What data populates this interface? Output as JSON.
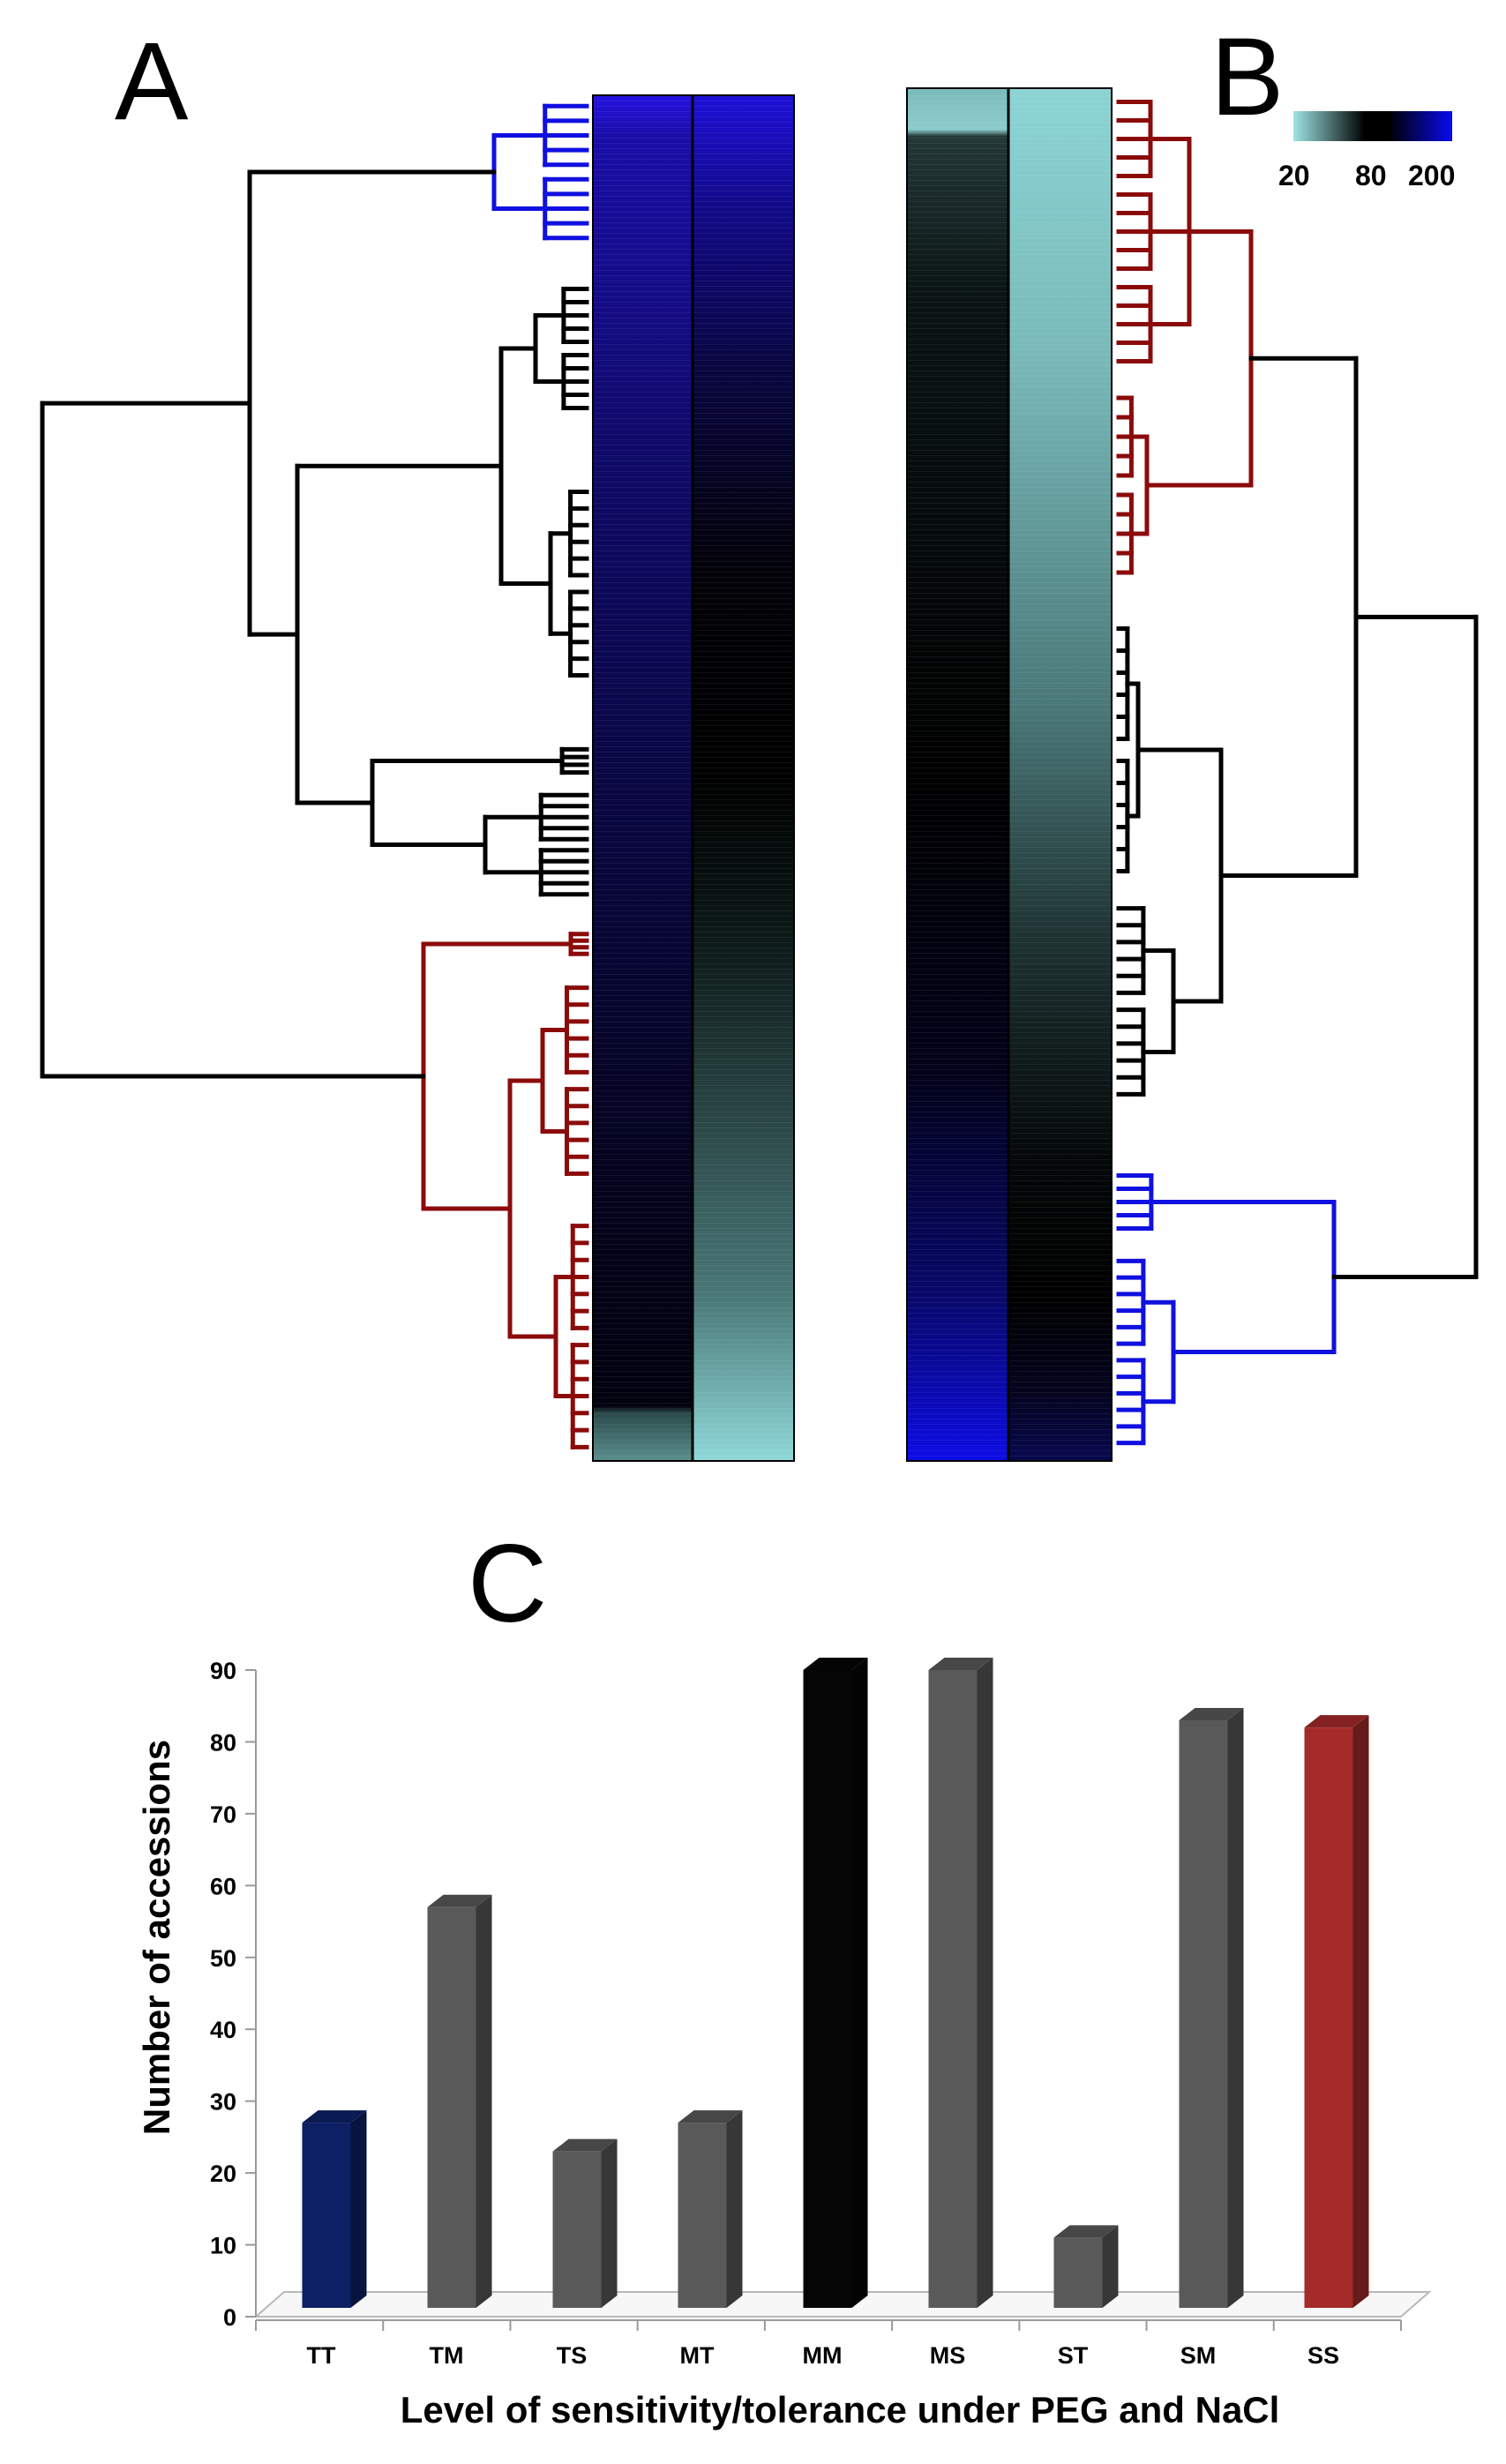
{
  "panels": {
    "a": "A",
    "b": "B",
    "c": "C"
  },
  "colors": {
    "cluster_blue": "#1010e0",
    "cluster_black": "#000000",
    "cluster_red": "#8b0b0b",
    "heat_low": "#8fdcdc",
    "heat_mid": "#000000",
    "heat_high": "#0a0ae6",
    "bar_grey": "#595959",
    "bar_navy": "#0d2066",
    "bar_black": "#050505",
    "bar_red": "#a52a2a"
  },
  "heatmap_legend": {
    "labels": [
      "20",
      "80",
      "200"
    ]
  },
  "chart_data": [
    {
      "type": "heatmap",
      "panel": "A",
      "columns": 2,
      "value_range": [
        20,
        200
      ],
      "color_scale": [
        "20",
        "80",
        "200"
      ],
      "dendrogram_clusters": [
        "blue",
        "black",
        "red"
      ]
    },
    {
      "type": "heatmap",
      "panel": "B",
      "columns": 2,
      "value_range": [
        20,
        200
      ],
      "color_scale": [
        "20",
        "80",
        "200"
      ],
      "dendrogram_clusters": [
        "red",
        "black",
        "blue"
      ]
    },
    {
      "type": "bar",
      "panel": "C",
      "categories": [
        "TT",
        "TM",
        "TS",
        "MT",
        "MM",
        "MS",
        "ST",
        "SM",
        "SS"
      ],
      "values": [
        27,
        57,
        23,
        27,
        90,
        90,
        11,
        83,
        82
      ],
      "bar_colors": [
        "#0d2066",
        "#595959",
        "#595959",
        "#595959",
        "#050505",
        "#595959",
        "#595959",
        "#595959",
        "#a52a2a"
      ],
      "xlabel": "Level of sensitivity/tolerance under PEG and NaCl",
      "ylabel": "Number of accessions",
      "ylim": [
        0,
        90
      ],
      "yticks": [
        "0",
        "10",
        "20",
        "30",
        "40",
        "50",
        "60",
        "70",
        "80",
        "90"
      ],
      "grid": false,
      "legend": "none"
    }
  ]
}
